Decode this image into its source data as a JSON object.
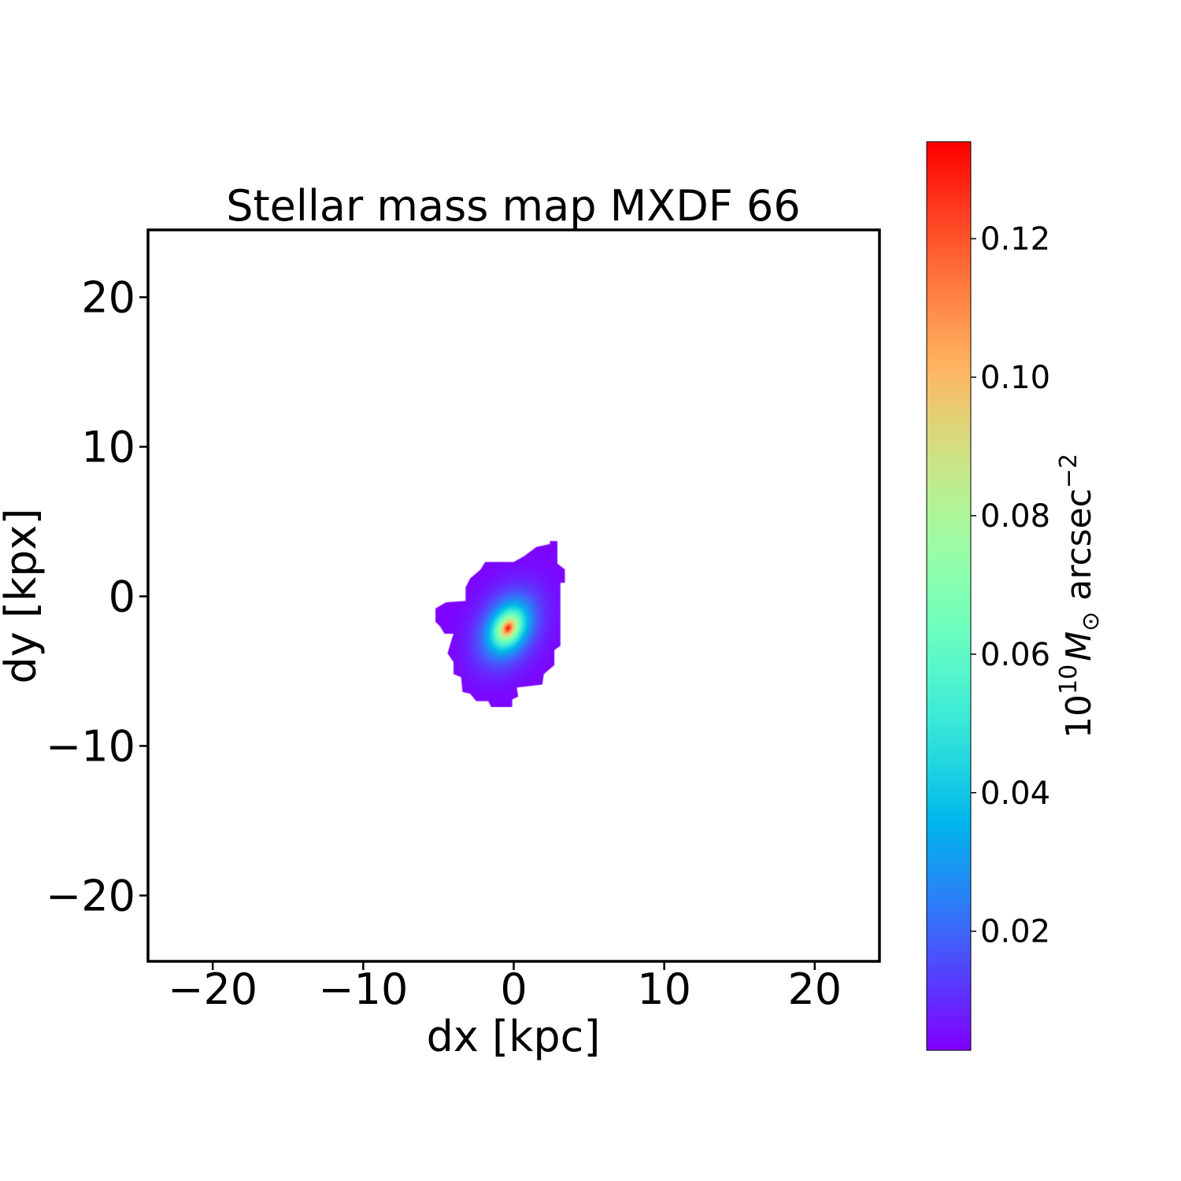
{
  "chart_data": {
    "type": "heatmap",
    "title": "Stellar mass map MXDF 66",
    "xlabel": "dx [kpc]",
    "ylabel": "dy [kpx]",
    "xlim": [
      -24.3,
      24.3
    ],
    "ylim": [
      -24.4,
      24.5
    ],
    "xticks": [
      -20,
      -10,
      0,
      10,
      20
    ],
    "yticks": [
      -20,
      -10,
      0,
      10,
      20
    ],
    "xtick_labels": [
      "−20",
      "−10",
      "0",
      "10",
      "20"
    ],
    "ytick_labels": [
      "−20",
      "−10",
      "0",
      "10",
      "20"
    ],
    "colormap": "rainbow",
    "colorbar": {
      "label": "10^10 M_sun arcsec^-2",
      "label_parts": {
        "base": "10",
        "exp": "10",
        "sym": "M",
        "sub": "⊙",
        "unit": " arcsec",
        "unit_exp": "−2"
      },
      "range": [
        0.0028,
        0.134
      ],
      "ticks": [
        0.02,
        0.04,
        0.06,
        0.08,
        0.1,
        0.12
      ],
      "tick_labels": [
        "0.02",
        "0.04",
        "0.06",
        "0.08",
        "0.10",
        "0.12"
      ]
    },
    "source": {
      "peak_position_kpc": [
        -0.4,
        -2.1
      ],
      "peak_value": 0.134,
      "min_value": 0.0028,
      "major_axis_angle_deg": 62,
      "axis_ratio": 1.45,
      "outline_kpc": [
        [
          2.4,
          3.7
        ],
        [
          2.9,
          3.7
        ],
        [
          2.9,
          2.2
        ],
        [
          3.4,
          1.8
        ],
        [
          3.4,
          0.9
        ],
        [
          3.1,
          0.9
        ],
        [
          3.1,
          -3.3
        ],
        [
          2.7,
          -3.6
        ],
        [
          2.7,
          -4.6
        ],
        [
          2.0,
          -5.2
        ],
        [
          1.9,
          -5.9
        ],
        [
          0.2,
          -6.1
        ],
        [
          0.3,
          -6.7
        ],
        [
          -0.1,
          -6.9
        ],
        [
          -0.1,
          -7.4
        ],
        [
          -1.5,
          -7.4
        ],
        [
          -1.7,
          -7.0
        ],
        [
          -2.5,
          -7.0
        ],
        [
          -2.9,
          -6.5
        ],
        [
          -3.4,
          -6.4
        ],
        [
          -3.5,
          -5.4
        ],
        [
          -4.0,
          -5.2
        ],
        [
          -4.0,
          -4.4
        ],
        [
          -4.4,
          -3.8
        ],
        [
          -4.1,
          -2.8
        ],
        [
          -4.0,
          -2.5
        ],
        [
          -4.6,
          -2.5
        ],
        [
          -4.9,
          -2.0
        ],
        [
          -5.2,
          -1.7
        ],
        [
          -5.2,
          -0.8
        ],
        [
          -4.5,
          -0.4
        ],
        [
          -3.2,
          -0.3
        ],
        [
          -3.2,
          0.6
        ],
        [
          -2.9,
          1.2
        ],
        [
          -2.2,
          1.8
        ],
        [
          -1.9,
          2.3
        ],
        [
          0.0,
          2.3
        ],
        [
          0.7,
          2.7
        ],
        [
          1.5,
          3.3
        ],
        [
          2.4,
          3.5
        ]
      ]
    }
  }
}
